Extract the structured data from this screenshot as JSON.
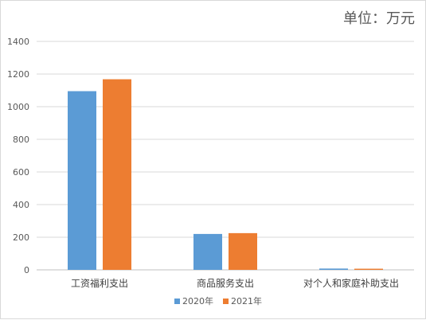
{
  "unit_label": "单位：万元",
  "chart_data": {
    "type": "bar",
    "categories": [
      "工资福利支出",
      "商品服务支出",
      "对个人和家庭补助支出"
    ],
    "series": [
      {
        "name": "2020年",
        "color": "#5b9bd5",
        "values": [
          1095,
          220,
          8
        ]
      },
      {
        "name": "2021年",
        "color": "#ed7d31",
        "values": [
          1168,
          225,
          7
        ]
      }
    ],
    "ylim": [
      0,
      1400
    ],
    "yticks": [
      0,
      200,
      400,
      600,
      800,
      1000,
      1200,
      1400
    ],
    "grid": true,
    "legend_position": "bottom"
  }
}
